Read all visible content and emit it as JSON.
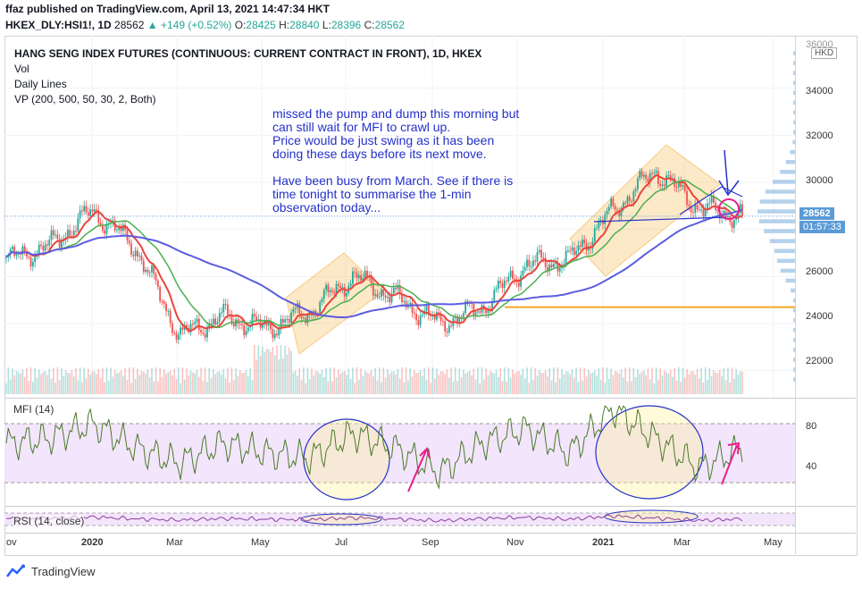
{
  "header": {
    "publisher": "ffaz published on TradingView.com, April 13, 2021 14:47:34 HKT",
    "symbol": "HKEX_DLY:HSI1!, 1D",
    "last": "28562",
    "change": "▲ +149 (+0.52%)",
    "o_label": "O:",
    "o_value": "28425",
    "h_label": "H:",
    "h_value": "28840",
    "l_label": "L:",
    "l_value": "28396",
    "c_label": "C:",
    "c_value": "28562"
  },
  "legend": {
    "title": "HANG SENG INDEX FUTURES (CONTINUOUS: CURRENT CONTRACT IN FRONT), 1D, HKEX",
    "vol": "Vol",
    "daily_lines": "Daily Lines",
    "vp": "VP (200, 500, 50, 30, 2, Both)"
  },
  "annotation": {
    "text": "missed the pump and dump this morning but\ncan still wait for MFI to crawl up.\nPrice would be just swing as it has been\ndoing these days before its next move.\n\nHave been busy from March. See if there is\ntime tonight to summarise the 1-min\nobservation today..."
  },
  "price_axis": {
    "currency": "HKD",
    "ticks": [
      "34000",
      "32000",
      "30000",
      "26000",
      "24000",
      "22000"
    ],
    "top_tick_partial": "36000",
    "current_price": "28562",
    "countdown": "01:57:33"
  },
  "mfi": {
    "label": "MFI (14)",
    "ticks": [
      "80",
      "40"
    ]
  },
  "rsi": {
    "label": "RSI (14, close)"
  },
  "time_axis": {
    "labels": [
      "ov",
      "2020",
      "Mar",
      "May",
      "Jul",
      "Sep",
      "Nov",
      "2021",
      "Mar",
      "May"
    ]
  },
  "footer": {
    "brand": "TradingView"
  },
  "colors": {
    "up": "#26a69a",
    "down": "#ef5350",
    "ma_fast": "#e8463a",
    "ma_mid": "#4caf50",
    "ma_slow": "#5c5ce0",
    "support": "#f5a623",
    "annotation": "#2431c9",
    "arrow_pink": "#e91e8c",
    "mfi_band": "#f3e5fb",
    "rsi_line": "#8e3e9e"
  },
  "chart_data": [
    {
      "type": "line",
      "title": "HANG SENG INDEX FUTURES (CONTINUOUS: CURRENT CONTRACT IN FRONT), 1D, HKEX",
      "xlabel": "",
      "ylabel": "",
      "x": [
        "2019-11",
        "2019-12",
        "2020-01",
        "2020-02",
        "2020-03",
        "2020-04",
        "2020-05",
        "2020-06",
        "2020-07",
        "2020-08",
        "2020-09",
        "2020-10",
        "2020-11",
        "2020-12",
        "2021-01",
        "2021-02",
        "2021-03",
        "2021-04"
      ],
      "series": [
        {
          "values": [
            26700,
            27300,
            28800,
            27200,
            23500,
            24300,
            23800,
            24500,
            26000,
            25100,
            24000,
            24700,
            26500,
            26700,
            28800,
            30500,
            28900,
            28562
          ]
        }
      ],
      "ylim": [
        21000,
        36000
      ],
      "support_level": 24700,
      "last_price": 28562,
      "grid": true
    },
    {
      "type": "line",
      "title": "MFI (14)",
      "x": [
        "2019-11",
        "2019-12",
        "2020-01",
        "2020-02",
        "2020-03",
        "2020-04",
        "2020-05",
        "2020-06",
        "2020-07",
        "2020-08",
        "2020-09",
        "2020-10",
        "2020-11",
        "2020-12",
        "2021-01",
        "2021-02",
        "2021-03",
        "2021-04"
      ],
      "series": [
        {
          "values": [
            60,
            65,
            80,
            55,
            40,
            60,
            50,
            45,
            70,
            55,
            30,
            60,
            75,
            50,
            95,
            65,
            35,
            55
          ]
        }
      ],
      "ylim": [
        0,
        100
      ],
      "bands": [
        20,
        80
      ]
    }
  ]
}
